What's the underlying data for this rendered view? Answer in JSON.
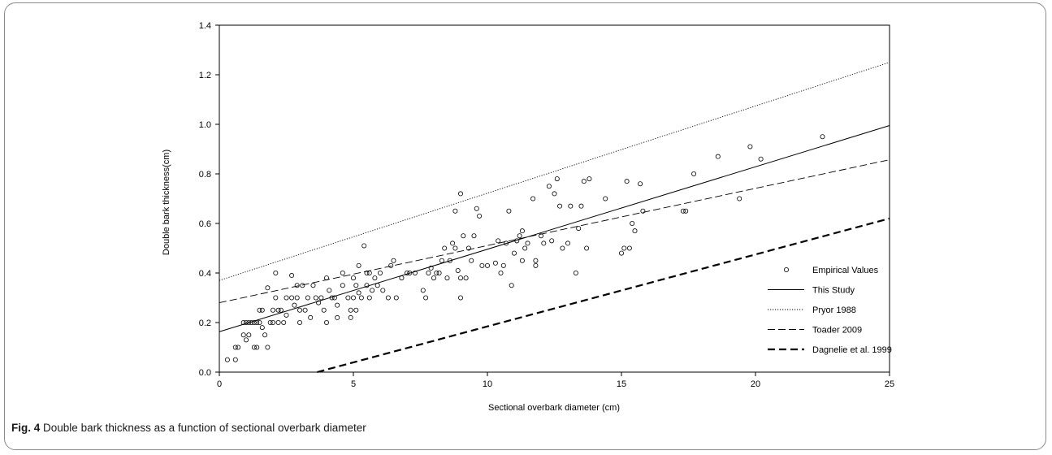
{
  "caption": {
    "figure_label": "Fig. 4",
    "text": "Double bark thickness as a function of sectional overbark diameter"
  },
  "chart_data": {
    "type": "scatter",
    "xlabel": "Sectional overbark diameter (cm)",
    "ylabel": "Double bark thickness(cm)",
    "xlim": [
      0,
      25
    ],
    "ylim": [
      0,
      1.4
    ],
    "xticks": [
      0,
      5,
      10,
      15,
      20,
      25
    ],
    "yticks": [
      0.0,
      0.2,
      0.4,
      0.6,
      0.8,
      1.0,
      1.2,
      1.4
    ],
    "ytick_labels": [
      "0.0",
      "0.2",
      "0.4",
      "0.6",
      "0.8",
      "1.0",
      "1.2",
      "1.4"
    ],
    "xtick_labels": [
      "0",
      "5",
      "10",
      "15",
      "20",
      "25"
    ],
    "grid": false,
    "legend_position": "bottom-right",
    "series": [
      {
        "name": "Empirical Values",
        "kind": "points",
        "points": [
          [
            0.3,
            0.05
          ],
          [
            0.6,
            0.05
          ],
          [
            0.6,
            0.1
          ],
          [
            0.7,
            0.1
          ],
          [
            0.9,
            0.2
          ],
          [
            0.9,
            0.15
          ],
          [
            1.0,
            0.13
          ],
          [
            1.0,
            0.2
          ],
          [
            1.1,
            0.2
          ],
          [
            1.1,
            0.15
          ],
          [
            1.2,
            0.2
          ],
          [
            1.3,
            0.2
          ],
          [
            1.3,
            0.1
          ],
          [
            1.4,
            0.2
          ],
          [
            1.4,
            0.1
          ],
          [
            1.5,
            0.2
          ],
          [
            1.5,
            0.25
          ],
          [
            1.6,
            0.18
          ],
          [
            1.6,
            0.25
          ],
          [
            1.7,
            0.15
          ],
          [
            1.8,
            0.1
          ],
          [
            1.8,
            0.34
          ],
          [
            1.9,
            0.2
          ],
          [
            2.0,
            0.25
          ],
          [
            2.0,
            0.2
          ],
          [
            2.1,
            0.4
          ],
          [
            2.1,
            0.3
          ],
          [
            2.2,
            0.25
          ],
          [
            2.2,
            0.2
          ],
          [
            2.3,
            0.25
          ],
          [
            2.4,
            0.2
          ],
          [
            2.5,
            0.3
          ],
          [
            2.5,
            0.23
          ],
          [
            2.7,
            0.39
          ],
          [
            2.7,
            0.3
          ],
          [
            2.8,
            0.27
          ],
          [
            2.9,
            0.35
          ],
          [
            2.9,
            0.3
          ],
          [
            3.0,
            0.25
          ],
          [
            3.0,
            0.2
          ],
          [
            3.1,
            0.35
          ],
          [
            3.2,
            0.25
          ],
          [
            3.3,
            0.3
          ],
          [
            3.4,
            0.22
          ],
          [
            3.5,
            0.35
          ],
          [
            3.6,
            0.3
          ],
          [
            3.7,
            0.28
          ],
          [
            3.8,
            0.3
          ],
          [
            3.9,
            0.25
          ],
          [
            4.0,
            0.38
          ],
          [
            4.0,
            0.2
          ],
          [
            4.1,
            0.33
          ],
          [
            4.2,
            0.3
          ],
          [
            4.3,
            0.3
          ],
          [
            4.4,
            0.27
          ],
          [
            4.4,
            0.22
          ],
          [
            4.6,
            0.4
          ],
          [
            4.6,
            0.35
          ],
          [
            4.8,
            0.3
          ],
          [
            4.9,
            0.25
          ],
          [
            4.9,
            0.22
          ],
          [
            5.0,
            0.38
          ],
          [
            5.0,
            0.3
          ],
          [
            5.1,
            0.35
          ],
          [
            5.1,
            0.25
          ],
          [
            5.2,
            0.43
          ],
          [
            5.2,
            0.32
          ],
          [
            5.3,
            0.3
          ],
          [
            5.4,
            0.51
          ],
          [
            5.5,
            0.4
          ],
          [
            5.5,
            0.35
          ],
          [
            5.6,
            0.3
          ],
          [
            5.6,
            0.4
          ],
          [
            5.7,
            0.33
          ],
          [
            5.8,
            0.38
          ],
          [
            5.9,
            0.35
          ],
          [
            6.0,
            0.4
          ],
          [
            6.1,
            0.33
          ],
          [
            6.3,
            0.3
          ],
          [
            6.4,
            0.43
          ],
          [
            6.5,
            0.45
          ],
          [
            6.6,
            0.3
          ],
          [
            6.8,
            0.38
          ],
          [
            7.0,
            0.4
          ],
          [
            7.1,
            0.4
          ],
          [
            7.3,
            0.4
          ],
          [
            7.6,
            0.33
          ],
          [
            7.7,
            0.3
          ],
          [
            7.8,
            0.4
          ],
          [
            7.9,
            0.42
          ],
          [
            8.0,
            0.38
          ],
          [
            8.1,
            0.4
          ],
          [
            8.2,
            0.4
          ],
          [
            8.3,
            0.45
          ],
          [
            8.4,
            0.5
          ],
          [
            8.5,
            0.38
          ],
          [
            8.6,
            0.45
          ],
          [
            8.7,
            0.52
          ],
          [
            8.8,
            0.5
          ],
          [
            8.8,
            0.65
          ],
          [
            8.9,
            0.41
          ],
          [
            9.0,
            0.38
          ],
          [
            9.0,
            0.3
          ],
          [
            9.0,
            0.72
          ],
          [
            9.1,
            0.55
          ],
          [
            9.2,
            0.38
          ],
          [
            9.3,
            0.5
          ],
          [
            9.4,
            0.45
          ],
          [
            9.5,
            0.55
          ],
          [
            9.6,
            0.66
          ],
          [
            9.7,
            0.63
          ],
          [
            9.8,
            0.43
          ],
          [
            10.0,
            0.43
          ],
          [
            10.3,
            0.44
          ],
          [
            10.4,
            0.53
          ],
          [
            10.5,
            0.4
          ],
          [
            10.6,
            0.43
          ],
          [
            10.7,
            0.52
          ],
          [
            10.8,
            0.65
          ],
          [
            10.9,
            0.35
          ],
          [
            11.0,
            0.48
          ],
          [
            11.1,
            0.53
          ],
          [
            11.2,
            0.55
          ],
          [
            11.3,
            0.57
          ],
          [
            11.3,
            0.45
          ],
          [
            11.4,
            0.5
          ],
          [
            11.5,
            0.52
          ],
          [
            11.7,
            0.7
          ],
          [
            11.8,
            0.45
          ],
          [
            11.8,
            0.43
          ],
          [
            12.0,
            0.55
          ],
          [
            12.1,
            0.52
          ],
          [
            12.3,
            0.75
          ],
          [
            12.4,
            0.53
          ],
          [
            12.5,
            0.72
          ],
          [
            12.6,
            0.78
          ],
          [
            12.7,
            0.67
          ],
          [
            12.8,
            0.5
          ],
          [
            13.0,
            0.52
          ],
          [
            13.1,
            0.67
          ],
          [
            13.3,
            0.4
          ],
          [
            13.4,
            0.58
          ],
          [
            13.5,
            0.67
          ],
          [
            13.6,
            0.77
          ],
          [
            13.7,
            0.5
          ],
          [
            13.8,
            0.78
          ],
          [
            14.4,
            0.7
          ],
          [
            15.0,
            0.48
          ],
          [
            15.1,
            0.5
          ],
          [
            15.2,
            0.77
          ],
          [
            15.3,
            0.5
          ],
          [
            15.4,
            0.6
          ],
          [
            15.5,
            0.57
          ],
          [
            15.7,
            0.76
          ],
          [
            15.8,
            0.65
          ],
          [
            17.3,
            0.65
          ],
          [
            17.4,
            0.65
          ],
          [
            17.7,
            0.8
          ],
          [
            18.6,
            0.87
          ],
          [
            19.4,
            0.7
          ],
          [
            19.8,
            0.91
          ],
          [
            20.2,
            0.86
          ],
          [
            22.5,
            0.95
          ]
        ]
      },
      {
        "name": "This Study",
        "kind": "line",
        "style": "solid",
        "x": [
          0,
          25
        ],
        "y": [
          0.163,
          0.995
        ]
      },
      {
        "name": "Pryor 1988",
        "kind": "line",
        "style": "dotted",
        "x": [
          0,
          25
        ],
        "y": [
          0.37,
          1.25
        ]
      },
      {
        "name": "Toader 2009",
        "kind": "line",
        "style": "dashed",
        "x": [
          0,
          25
        ],
        "y": [
          0.28,
          0.857
        ]
      },
      {
        "name": "Dagnelie et al. 1999",
        "kind": "line",
        "style": "bold-dashed",
        "x": [
          3.65,
          25
        ],
        "y": [
          0.0,
          0.62
        ]
      }
    ]
  }
}
